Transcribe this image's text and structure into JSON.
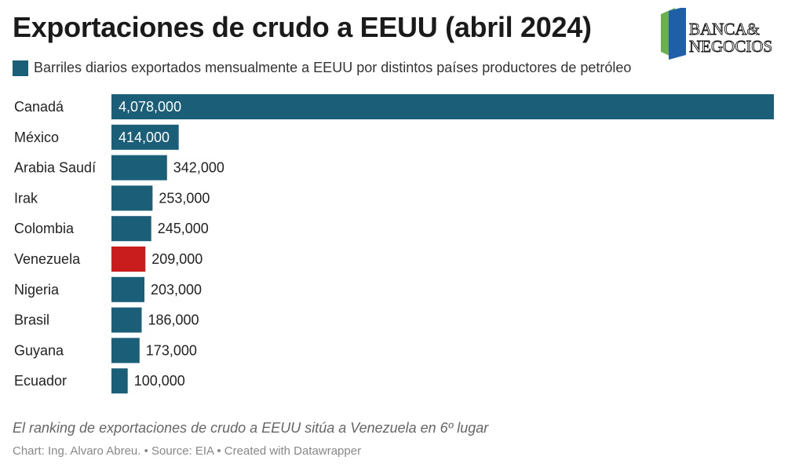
{
  "header": {
    "title": "Exportaciones de crudo a EEUU (abril 2024)"
  },
  "logo": {
    "line1": "BANCA&",
    "line2": "NEGOCIOS"
  },
  "legend": {
    "label": "Barriles diarios exportados mensualmente a EEUU por distintos países productores de petróleo"
  },
  "colors": {
    "default_bar": "#1b5e78",
    "highlight_bar": "#c91c1c",
    "label_inside": "#ffffff",
    "label_outside": "#222222"
  },
  "chart_data": {
    "type": "bar",
    "orientation": "horizontal",
    "categories": [
      "Canadá",
      "México",
      "Arabia Saudí",
      "Irak",
      "Colombia",
      "Venezuela",
      "Nigeria",
      "Brasil",
      "Guyana",
      "Ecuador"
    ],
    "values": [
      4078000,
      414000,
      342000,
      253000,
      245000,
      209000,
      203000,
      186000,
      173000,
      100000
    ],
    "value_labels": [
      "4,078,000",
      "414,000",
      "342,000",
      "253,000",
      "245,000",
      "209,000",
      "203,000",
      "186,000",
      "173,000",
      "100,000"
    ],
    "highlight": "Venezuela",
    "xlim": [
      0,
      4078000
    ],
    "grid": false
  },
  "description": "El ranking de exportaciones de crudo a EEUU sitúa a Venezuela en 6º lugar",
  "footer": {
    "text": "Chart: Ing. Alvaro Abreu. • Source: EIA • Created with Datawrapper"
  }
}
